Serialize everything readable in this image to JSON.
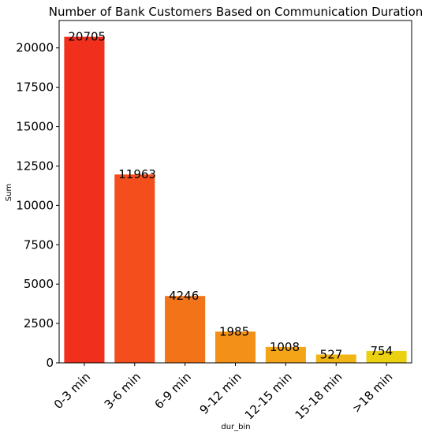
{
  "chart_data": {
    "type": "bar",
    "title": "Number of Bank Customers Based on Communication Duration",
    "xlabel": "dur_bin",
    "ylabel": "Sum",
    "categories": [
      "0-3 min",
      "3-6 min",
      "6-9 min",
      "9-12 min",
      "12-15 min",
      "15-18 min",
      ">18 min"
    ],
    "values": [
      20705,
      11963,
      4246,
      1985,
      1008,
      527,
      754
    ],
    "bar_colors": [
      "#f0301c",
      "#f34e1c",
      "#f27318",
      "#f29017",
      "#f3a417",
      "#f1b515",
      "#ecd111"
    ],
    "ylim": [
      0,
      21740
    ],
    "yticks": [
      0,
      2500,
      5000,
      7500,
      10000,
      12500,
      15000,
      17500,
      20000
    ],
    "grid": false,
    "legend": "none"
  }
}
